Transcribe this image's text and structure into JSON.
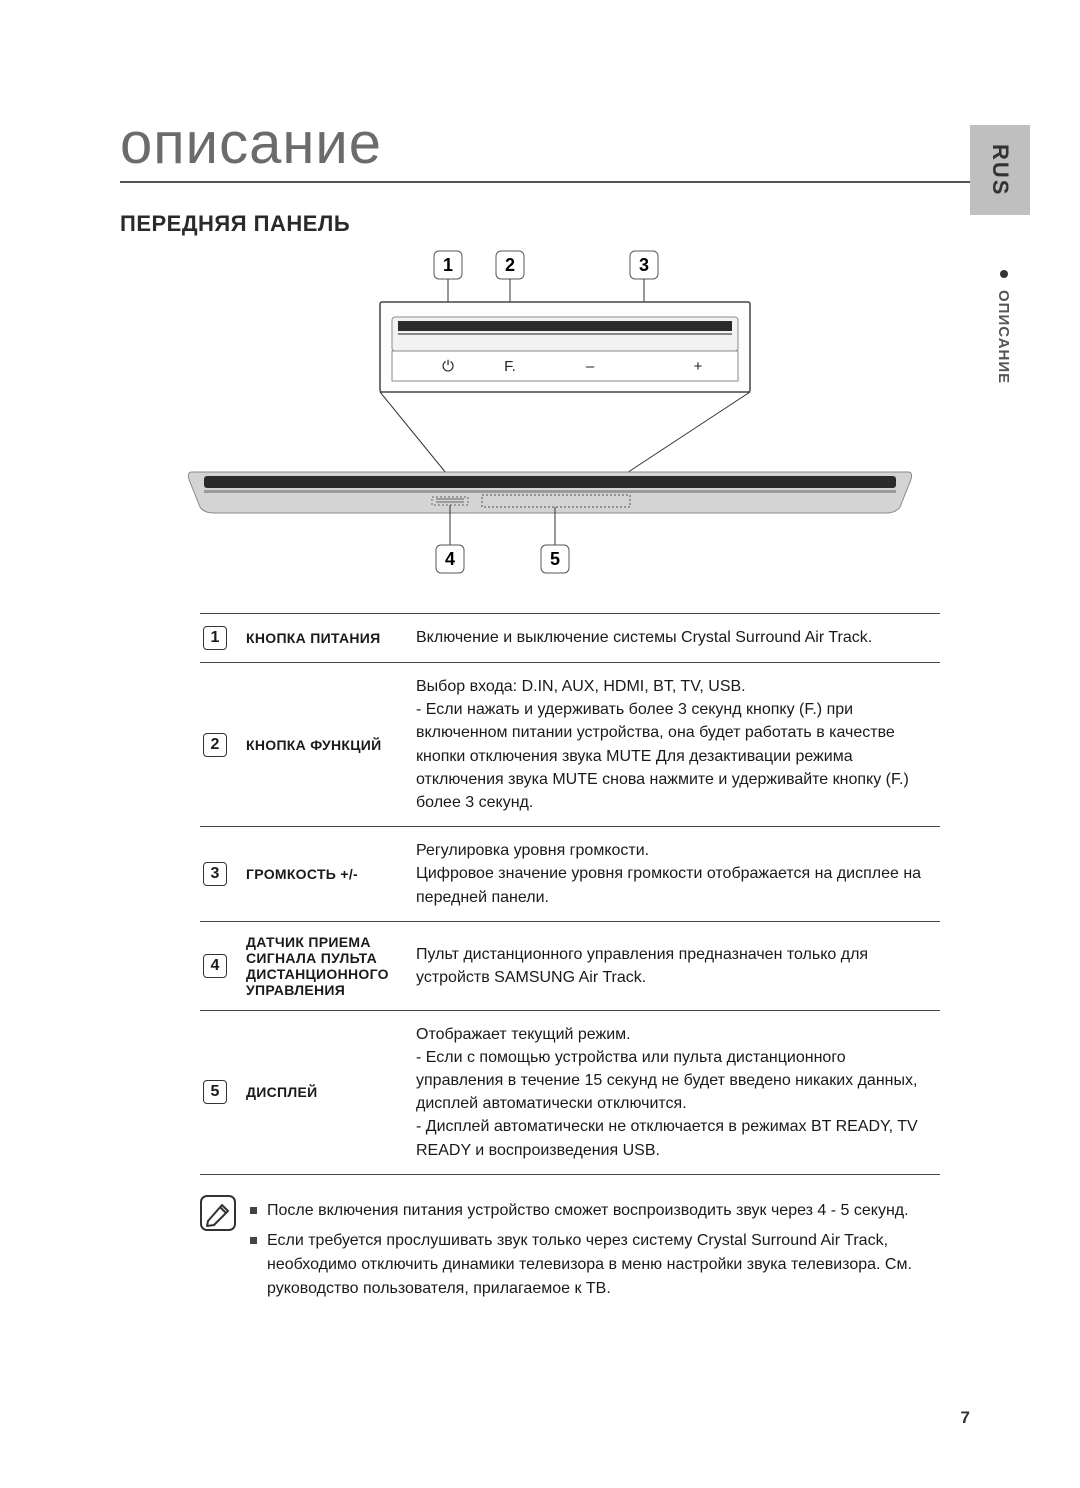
{
  "side_tab": "RUS",
  "side_section": "ОПИСАНИЕ",
  "title": "описание",
  "subtitle": "ПЕРЕДНЯЯ ПАНЕЛЬ",
  "page_number": "7",
  "diagram": {
    "callout_numbers_top": [
      "1",
      "2",
      "3"
    ],
    "callout_numbers_bottom": [
      "4",
      "5"
    ],
    "panel_labels": {
      "power": "⏻",
      "func": "F.",
      "minus": "–",
      "plus": "+"
    },
    "colors": {
      "box_stroke": "#333333",
      "callout_box_stroke": "#555555",
      "unit_fill": "#f2f2f2",
      "unit_edge_dark": "#8a8a8a",
      "soundbar_body": "#d4d4d4",
      "soundbar_edge": "#888888",
      "speaker_dark": "#2b2b2b",
      "line": "#333333"
    }
  },
  "rows": [
    {
      "num": "1",
      "name": "КНОПКА ПИТАНИЯ",
      "text": "Включение и выключение системы Crystal Surround Air Track."
    },
    {
      "num": "2",
      "name": "КНОПКА ФУНКЦИЙ",
      "text": "Выбор входа: D.IN, AUX, HDMI, BT, TV, USB.\n- Если нажать и удерживать более 3 секунд кнопку (F.) при включенном питании устройства, она будет работать в качестве кнопки отключения звука MUTE Для дезактивации режима отключения звука MUTE снова нажмите и удерживайте кнопку (F.) более 3 секунд."
    },
    {
      "num": "3",
      "name": "ГРОМКОСТЬ +/-",
      "text": "Регулировка уровня громкости.\nЦифровое значение уровня громкости отображается на дисплее на передней панели."
    },
    {
      "num": "4",
      "name": "ДАТЧИК ПРИЕМА СИГНАЛА ПУЛЬТА ДИСТАНЦИОННОГО УПРАВЛЕНИЯ",
      "text": "Пульт дистанционного управления предназначен только для устройств SAMSUNG Air Track."
    },
    {
      "num": "5",
      "name": "ДИСПЛЕЙ",
      "text": "Отображает текущий режим.\n- Если с помощью устройства или пульта дистанционного управления в течение 15 секунд не будет введено никаких данных, дисплей автоматически отключится.\n- Дисплей автоматически не отключается в режимах BT READY, TV READY и воспроизведения USB."
    }
  ],
  "notes": [
    "После включения питания устройство сможет воспроизводить звук через 4 - 5 секунд.",
    "Если требуется прослушивать звук только через систему Crystal Surround Air Track, необходимо отключить динамики телевизора в меню настройки звука телевизора. См. руководство пользователя, прилагаемое к ТВ."
  ]
}
